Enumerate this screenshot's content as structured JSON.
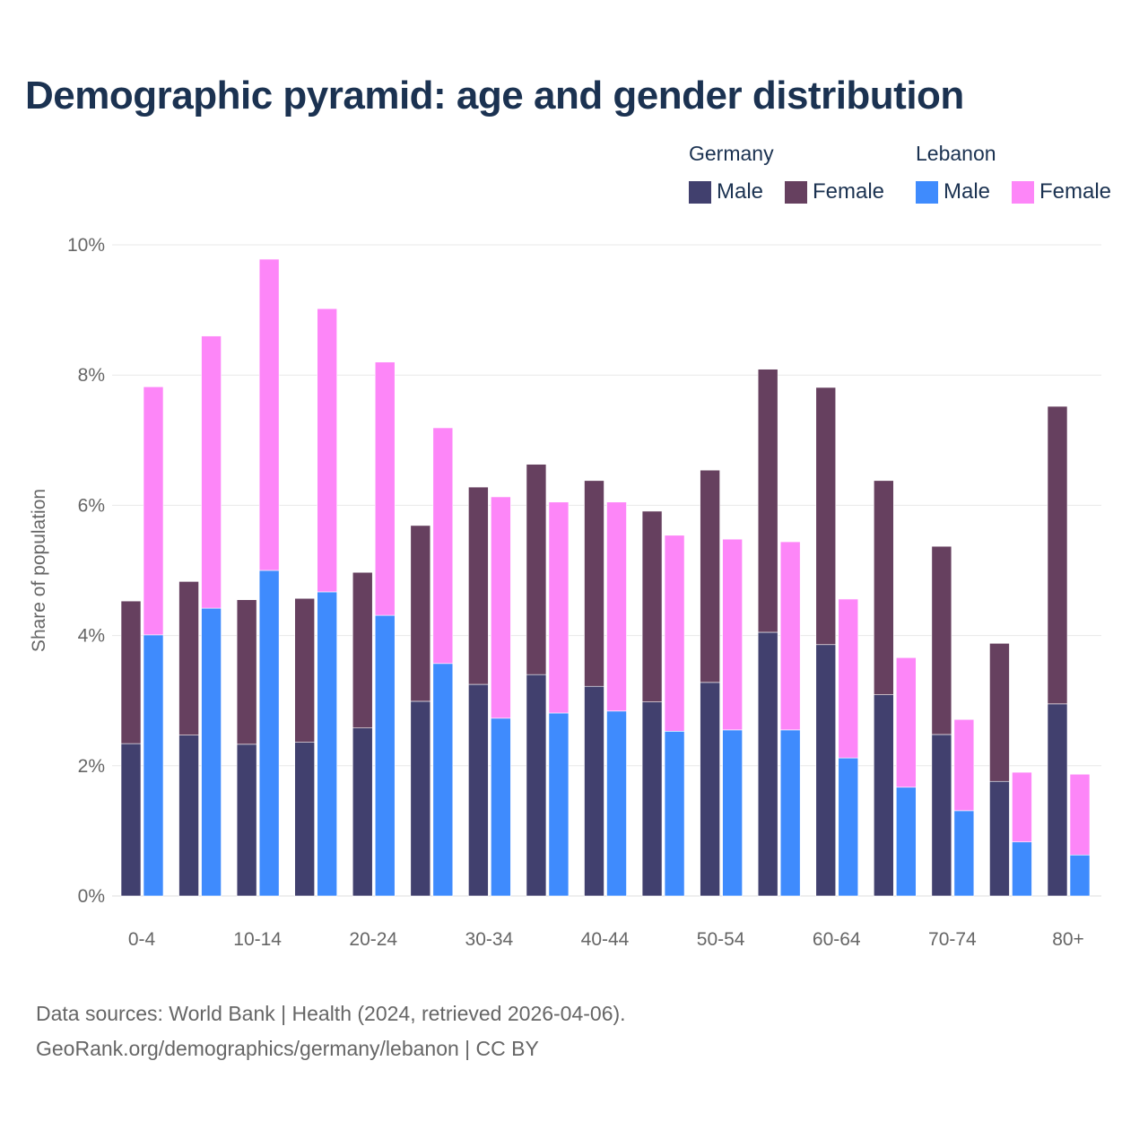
{
  "title": "Demographic pyramid: age and gender distribution",
  "legend": {
    "groups": [
      "Germany",
      "Lebanon"
    ],
    "items": [
      {
        "label": "Male",
        "color": "#41406e"
      },
      {
        "label": "Female",
        "color": "#66405f"
      },
      {
        "label": "Male",
        "color": "#3f8bfd"
      },
      {
        "label": "Female",
        "color": "#fd86f8"
      }
    ]
  },
  "source_lines": [
    "Data sources: World Bank | Health (2024, retrieved 2026-04-06).",
    "GeoRank.org/demographics/germany/lebanon | CC BY"
  ],
  "chart_data": {
    "type": "bar",
    "stacked": true,
    "title": "Demographic pyramid: age and gender distribution",
    "xlabel": "",
    "ylabel": "Share of population",
    "ylim": [
      0,
      10
    ],
    "yticks": [
      "0%",
      "2%",
      "4%",
      "6%",
      "8%",
      "10%"
    ],
    "ytick_values": [
      0,
      2,
      4,
      6,
      8,
      10
    ],
    "grid": true,
    "legend_position": "top-right",
    "categories": [
      "0-4",
      "5-9",
      "10-14",
      "15-19",
      "20-24",
      "25-29",
      "30-34",
      "35-39",
      "40-44",
      "45-49",
      "50-54",
      "55-59",
      "60-64",
      "65-69",
      "70-74",
      "75-79",
      "80+"
    ],
    "xtick_labels": [
      "0-4",
      "",
      "10-14",
      "",
      "20-24",
      "",
      "30-34",
      "",
      "40-44",
      "",
      "50-54",
      "",
      "60-64",
      "",
      "70-74",
      "",
      "80+"
    ],
    "series": [
      {
        "name": "Germany Male",
        "country": "Germany",
        "stack": "Germany",
        "color": "#41406e",
        "values": [
          2.34,
          2.47,
          2.33,
          2.36,
          2.58,
          2.99,
          3.25,
          3.4,
          3.22,
          2.98,
          3.28,
          4.05,
          3.86,
          3.09,
          2.48,
          1.76,
          2.95
        ]
      },
      {
        "name": "Germany Female",
        "country": "Germany",
        "stack": "Germany",
        "color": "#66405f",
        "values": [
          2.19,
          2.36,
          2.22,
          2.21,
          2.39,
          2.7,
          3.03,
          3.23,
          3.16,
          2.93,
          3.26,
          4.04,
          3.95,
          3.29,
          2.89,
          2.12,
          4.57
        ]
      },
      {
        "name": "Lebanon Male",
        "country": "Lebanon",
        "stack": "Lebanon",
        "color": "#3f8bfd",
        "values": [
          4.01,
          4.42,
          5.0,
          4.67,
          4.31,
          3.57,
          2.73,
          2.81,
          2.84,
          2.53,
          2.55,
          2.55,
          2.12,
          1.67,
          1.31,
          0.83,
          0.63
        ]
      },
      {
        "name": "Lebanon Female",
        "country": "Lebanon",
        "stack": "Lebanon",
        "color": "#fd86f8",
        "values": [
          3.81,
          4.18,
          4.78,
          4.35,
          3.89,
          3.62,
          3.4,
          3.24,
          3.21,
          3.01,
          2.93,
          2.89,
          2.44,
          1.99,
          1.4,
          1.07,
          1.24
        ]
      }
    ]
  }
}
